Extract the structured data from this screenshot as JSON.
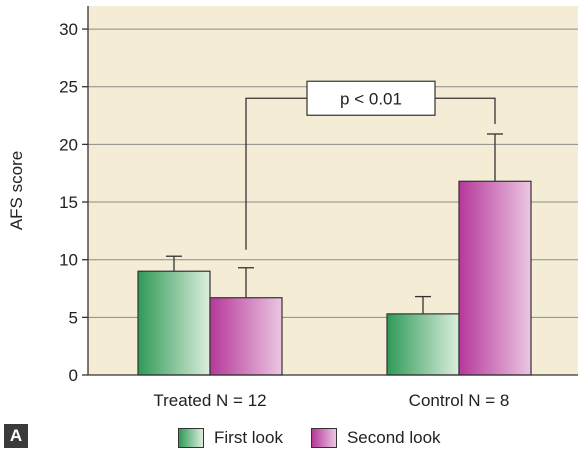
{
  "panel_label": "A",
  "chart_data": {
    "type": "bar",
    "ylabel": "AFS score",
    "ylim": [
      0,
      32
    ],
    "yticks": [
      0,
      5,
      10,
      15,
      20,
      25,
      30
    ],
    "categories": [
      "Treated N = 12",
      "Control N = 8"
    ],
    "series": [
      {
        "name": "First look",
        "values": [
          9.0,
          5.3
        ],
        "errors": [
          1.3,
          1.5
        ]
      },
      {
        "name": "Second look",
        "values": [
          6.7,
          16.8
        ],
        "errors": [
          2.6,
          4.1
        ]
      }
    ],
    "annotation": {
      "text": "p < 0.01"
    },
    "colors": {
      "background": "#f4ecd4",
      "first_dark": "#2f9a58",
      "first_light": "#dceedd",
      "second_dark": "#b5389a",
      "second_light": "#ecc6e2",
      "grid": "#8a8a8a"
    }
  }
}
